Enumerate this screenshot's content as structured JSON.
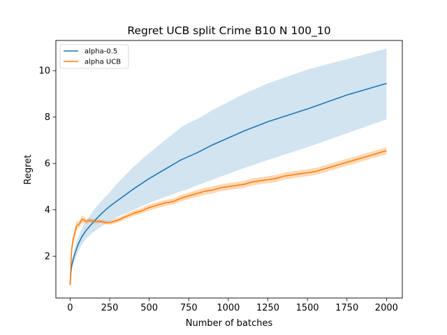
{
  "chart_data": {
    "type": "line",
    "title": "Regret UCB split Crime B10 N 100_10",
    "xlabel": "Number of batches",
    "ylabel": "Regret",
    "xlim": [
      -90,
      2100
    ],
    "ylim": [
      0.2,
      11.3
    ],
    "xticks": [
      0,
      250,
      500,
      750,
      1000,
      1250,
      1500,
      1750,
      2000
    ],
    "yticks": [
      2,
      4,
      6,
      8,
      10
    ],
    "grid": false,
    "legend": "top-left",
    "series": [
      {
        "name": "alpha-0.5",
        "color": "#1f77b4",
        "band_color": "#1f77b4",
        "x": [
          0,
          5,
          10,
          25,
          50,
          75,
          100,
          150,
          200,
          250,
          300,
          400,
          500,
          600,
          700,
          750,
          800,
          900,
          1000,
          1100,
          1250,
          1500,
          1750,
          2000
        ],
        "y": [
          0.8,
          1.3,
          1.6,
          2.0,
          2.5,
          2.85,
          3.1,
          3.5,
          3.85,
          4.15,
          4.4,
          4.9,
          5.35,
          5.75,
          6.15,
          6.3,
          6.45,
          6.8,
          7.1,
          7.4,
          7.8,
          8.35,
          8.95,
          9.45
        ],
        "lower": [
          0.7,
          1.15,
          1.4,
          1.75,
          2.2,
          2.5,
          2.75,
          3.05,
          3.3,
          3.5,
          3.7,
          4.0,
          4.3,
          4.55,
          4.8,
          4.9,
          5.05,
          5.3,
          5.55,
          5.8,
          6.15,
          6.7,
          7.3,
          7.9
        ],
        "upper": [
          0.9,
          1.45,
          1.8,
          2.25,
          2.8,
          3.2,
          3.5,
          4.0,
          4.4,
          4.75,
          5.15,
          5.85,
          6.45,
          7.0,
          7.55,
          7.75,
          7.9,
          8.3,
          8.65,
          9.0,
          9.45,
          10.05,
          10.5,
          10.95
        ]
      },
      {
        "name": "alpha UCB",
        "color": "#ff7f0e",
        "band_color": "#ff7f0e",
        "x": [
          0,
          5,
          10,
          20,
          30,
          40,
          50,
          60,
          75,
          90,
          100,
          125,
          150,
          175,
          200,
          225,
          250,
          275,
          300,
          350,
          400,
          450,
          500,
          550,
          600,
          650,
          700,
          750,
          800,
          850,
          900,
          950,
          1000,
          1050,
          1100,
          1150,
          1200,
          1250,
          1300,
          1350,
          1400,
          1450,
          1500,
          1550,
          1600,
          1650,
          1700,
          1750,
          1800,
          1850,
          1900,
          1950,
          2000
        ],
        "y": [
          0.75,
          1.6,
          2.3,
          2.75,
          3.0,
          3.3,
          3.35,
          3.4,
          3.6,
          3.55,
          3.5,
          3.55,
          3.5,
          3.5,
          3.5,
          3.45,
          3.45,
          3.5,
          3.55,
          3.7,
          3.85,
          3.95,
          4.1,
          4.2,
          4.3,
          4.35,
          4.5,
          4.6,
          4.7,
          4.8,
          4.85,
          4.95,
          5.0,
          5.05,
          5.1,
          5.2,
          5.25,
          5.3,
          5.35,
          5.45,
          5.5,
          5.55,
          5.6,
          5.65,
          5.75,
          5.85,
          5.95,
          6.05,
          6.15,
          6.25,
          6.35,
          6.45,
          6.55
        ],
        "lower": [
          0.65,
          1.45,
          2.1,
          2.55,
          2.8,
          3.1,
          3.2,
          3.25,
          3.45,
          3.4,
          3.4,
          3.45,
          3.42,
          3.42,
          3.42,
          3.37,
          3.37,
          3.4,
          3.45,
          3.6,
          3.73,
          3.83,
          3.97,
          4.07,
          4.17,
          4.22,
          4.36,
          4.46,
          4.55,
          4.65,
          4.7,
          4.8,
          4.85,
          4.9,
          4.95,
          5.05,
          5.1,
          5.15,
          5.2,
          5.3,
          5.35,
          5.4,
          5.45,
          5.5,
          5.6,
          5.7,
          5.8,
          5.9,
          6.0,
          6.1,
          6.2,
          6.3,
          6.4
        ],
        "upper": [
          0.85,
          1.75,
          2.5,
          2.95,
          3.2,
          3.5,
          3.5,
          3.55,
          3.75,
          3.7,
          3.6,
          3.65,
          3.58,
          3.58,
          3.58,
          3.53,
          3.53,
          3.6,
          3.65,
          3.8,
          3.97,
          4.07,
          4.23,
          4.33,
          4.43,
          4.48,
          4.64,
          4.74,
          4.85,
          4.95,
          5.0,
          5.1,
          5.15,
          5.2,
          5.25,
          5.35,
          5.4,
          5.45,
          5.5,
          5.6,
          5.65,
          5.7,
          5.75,
          5.8,
          5.9,
          6.0,
          6.1,
          6.2,
          6.3,
          6.4,
          6.5,
          6.6,
          6.7
        ]
      }
    ]
  }
}
